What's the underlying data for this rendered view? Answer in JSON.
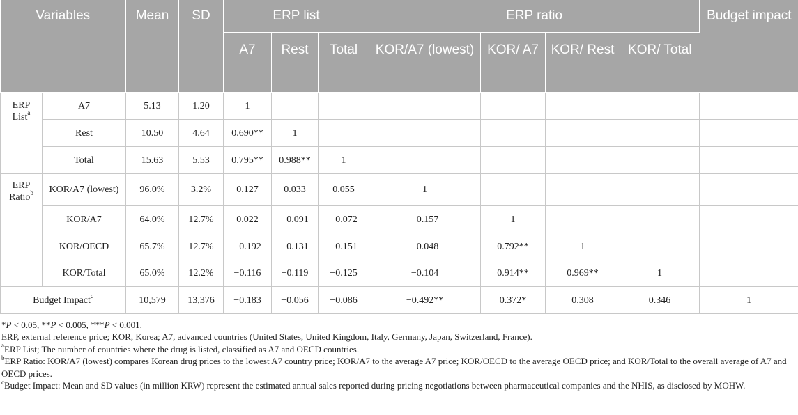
{
  "header": {
    "variables": "Variables",
    "mean": "Mean",
    "sd": "SD",
    "erp_list": "ERP list",
    "erp_ratio": "ERP ratio",
    "budget_impact": "Budget impact",
    "sub": [
      "A7",
      "Rest",
      "Total",
      "KOR/A7 (lowest)",
      "KOR/ A7",
      "KOR/ Rest",
      "KOR/ Total"
    ]
  },
  "groups": {
    "erp_list": "ERP List",
    "erp_list_sup": "a",
    "erp_ratio": "ERP Ratio",
    "erp_ratio_sup": "b"
  },
  "rows": [
    {
      "label": "A7",
      "sup": "",
      "mean": "5.13",
      "sd": "1.20",
      "c": [
        "1",
        "",
        "",
        "",
        "",
        "",
        "",
        ""
      ]
    },
    {
      "label": "Rest",
      "sup": "",
      "mean": "10.50",
      "sd": "4.64",
      "c": [
        "0.690**",
        "1",
        "",
        "",
        "",
        "",
        "",
        ""
      ]
    },
    {
      "label": "Total",
      "sup": "",
      "mean": "15.63",
      "sd": "5.53",
      "c": [
        "0.795**",
        "0.988**",
        "1",
        "",
        "",
        "",
        "",
        ""
      ]
    },
    {
      "label": "KOR/A7 (lowest)",
      "sup": "",
      "mean": "96.0%",
      "sd": "3.2%",
      "c": [
        "0.127",
        "0.033",
        "0.055",
        "1",
        "",
        "",
        "",
        ""
      ]
    },
    {
      "label": "KOR/A7",
      "sup": "",
      "mean": "64.0%",
      "sd": "12.7%",
      "c": [
        "0.022",
        "−0.091",
        "−0.072",
        "−0.157",
        "1",
        "",
        "",
        ""
      ]
    },
    {
      "label": "KOR/OECD",
      "sup": "",
      "mean": "65.7%",
      "sd": "12.7%",
      "c": [
        "−0.192",
        "−0.131",
        "−0.151",
        "−0.048",
        "0.792**",
        "1",
        "",
        ""
      ]
    },
    {
      "label": "KOR/Total",
      "sup": "",
      "mean": "65.0%",
      "sd": "12.2%",
      "c": [
        "−0.116",
        "−0.119",
        "−0.125",
        "−0.104",
        "0.914**",
        "0.969**",
        "1",
        ""
      ]
    },
    {
      "label": "Budget Impact",
      "sup": "c",
      "mean": "10,579",
      "sd": "13,376",
      "c": [
        "−0.183",
        "−0.056",
        "−0.086",
        "−0.492**",
        "0.372*",
        "0.308",
        "0.346",
        "1"
      ]
    }
  ],
  "notes": {
    "sig": [
      "P",
      " < 0.05, **",
      "P",
      " < 0.005, ***",
      "P",
      " < 0.001."
    ],
    "sig_star": "*",
    "abbr": "ERP, external reference price; KOR, Korea; A7, advanced countries (United States, United Kingdom, Italy, Germany, Japan, Switzerland, France).",
    "a_mark": "a",
    "a_text": "ERP List; The number of countries where the drug is listed, classified as A7 and OECD countries.",
    "b_mark": "b",
    "b_text": "ERP Ratio: KOR/A7 (lowest) compares Korean drug prices to the lowest A7 country price; KOR/A7 to the average A7 price; KOR/OECD to the average OECD price; and KOR/Total to the overall average of A7 and OECD prices.",
    "c_mark": "c",
    "c_text": "Budget Impact: Mean and SD values (in million KRW) represent the estimated annual sales reported during pricing negotiations between pharmaceutical companies and the NHIS, as disclosed by MOHW."
  }
}
